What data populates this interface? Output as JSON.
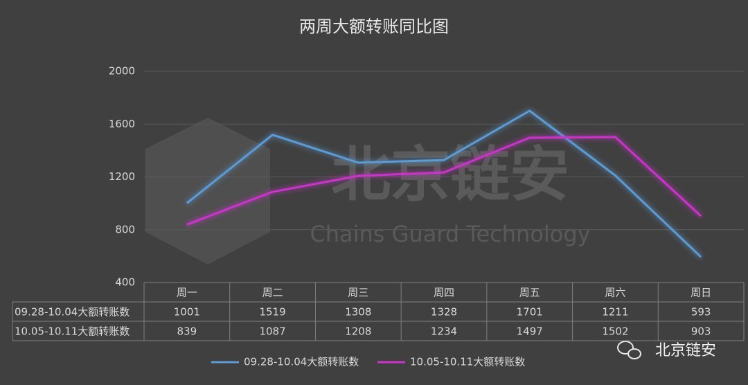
{
  "chart_data": {
    "type": "line",
    "title": "两周大额转账同比图",
    "categories": [
      "周一",
      "周二",
      "周三",
      "周四",
      "周五",
      "周六",
      "周日"
    ],
    "series": [
      {
        "name": "09.28-10.04大额转账数",
        "color": "#5b9bd5",
        "values": [
          1001,
          1519,
          1308,
          1328,
          1701,
          1211,
          593
        ]
      },
      {
        "name": "10.05-10.11大额转账数",
        "color": "#cc33cc",
        "values": [
          839,
          1087,
          1208,
          1234,
          1497,
          1502,
          903
        ]
      }
    ],
    "ylim": [
      400,
      2000
    ],
    "yticks": [
      400,
      800,
      1200,
      1600,
      2000
    ],
    "grid": true,
    "watermark": [
      "北京链安",
      "Chains Guard Technology"
    ],
    "brand": "北京链安"
  }
}
